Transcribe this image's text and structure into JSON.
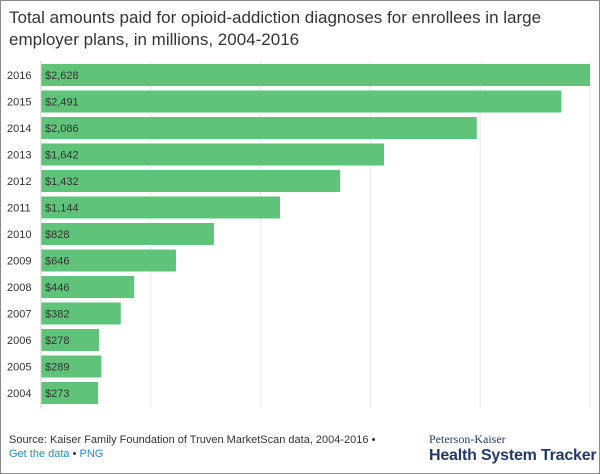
{
  "chart_data": {
    "type": "bar",
    "orientation": "horizontal",
    "title": "Total amounts paid for opioid-addiction diagnoses for enrollees in large employer plans, in millions, 2004-2016",
    "categories": [
      "2016",
      "2015",
      "2014",
      "2013",
      "2012",
      "2011",
      "2010",
      "2009",
      "2008",
      "2007",
      "2006",
      "2005",
      "2004"
    ],
    "values": [
      2628,
      2491,
      2086,
      1642,
      1432,
      1144,
      828,
      646,
      446,
      382,
      278,
      289,
      273
    ],
    "data_labels": [
      "$2,628",
      "$2,491",
      "$2,086",
      "$1,642",
      "$1,432",
      "$1,144",
      "$828",
      "$646",
      "$446",
      "$382",
      "$278",
      "$289",
      "$273"
    ],
    "xlim": [
      0,
      2628
    ],
    "grid": true,
    "bar_color": "#5fc47a"
  },
  "footer": {
    "source_text": "Source: Kaiser Family Foundation of Truven MarketScan data, 2004-2016",
    "separator": "•",
    "get_data_link": "Get the data",
    "png_link": "PNG"
  },
  "brand": {
    "top": "Peterson-Kaiser",
    "main": "Health System Tracker"
  }
}
